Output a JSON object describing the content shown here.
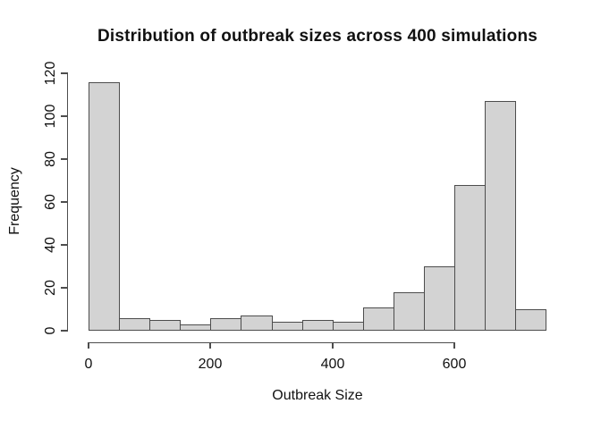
{
  "figure": {
    "title": "Distribution of outbreak sizes across 400 simulations",
    "x_axis_label": "Outbreak Size",
    "y_axis_label": "Frequency"
  },
  "colors": {
    "background": "#ffffff",
    "bar_fill": "#d3d3d3",
    "bar_border": "#4d4d4d",
    "axis": "#4d4d4d",
    "text": "#111111"
  },
  "chart_data": {
    "type": "bar",
    "subtype": "histogram",
    "title": "Distribution of outbreak sizes across 400 simulations",
    "xlabel": "Outbreak Size",
    "ylabel": "Frequency",
    "bin_width": 50,
    "bin_edges": [
      0,
      50,
      100,
      150,
      200,
      250,
      300,
      350,
      400,
      450,
      500,
      550,
      600,
      650,
      700,
      750
    ],
    "counts": [
      116,
      6,
      5,
      3,
      6,
      7,
      4,
      5,
      4,
      11,
      18,
      30,
      68,
      107,
      10
    ],
    "x_ticks": [
      0,
      200,
      400,
      600
    ],
    "y_ticks": [
      0,
      20,
      40,
      60,
      80,
      100,
      120
    ],
    "xlim": [
      0,
      750
    ],
    "ylim": [
      0,
      120
    ],
    "grid": false,
    "legend": "none"
  }
}
